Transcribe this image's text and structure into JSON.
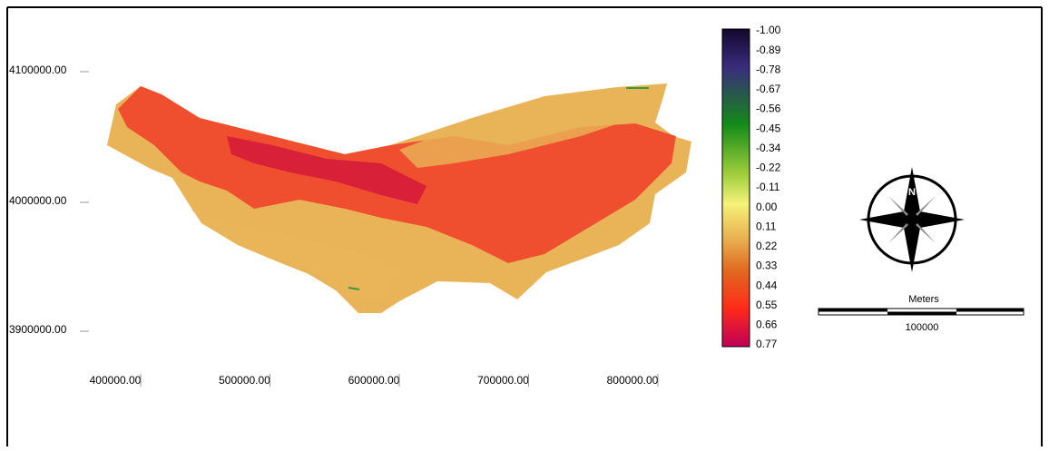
{
  "map": {
    "y_labels": [
      "4100000.00",
      "4000000.00",
      "3900000.00"
    ],
    "x_labels": [
      "400000.00",
      "500000.00",
      "600000.00",
      "700000.00",
      "800000.00"
    ],
    "legend": {
      "labels": [
        "-1.00",
        "-0.89",
        "-0.78",
        "-0.67",
        "-0.56",
        "-0.45",
        "-0.34",
        "-0.22",
        "-0.11",
        "0.00",
        "0.11",
        "0.22",
        "0.33",
        "0.44",
        "0.55",
        "0.66",
        "0.77"
      ]
    },
    "compass": {
      "label": "N"
    },
    "scale_bar": {
      "unit": "Meters",
      "length_label": "100000"
    }
  }
}
